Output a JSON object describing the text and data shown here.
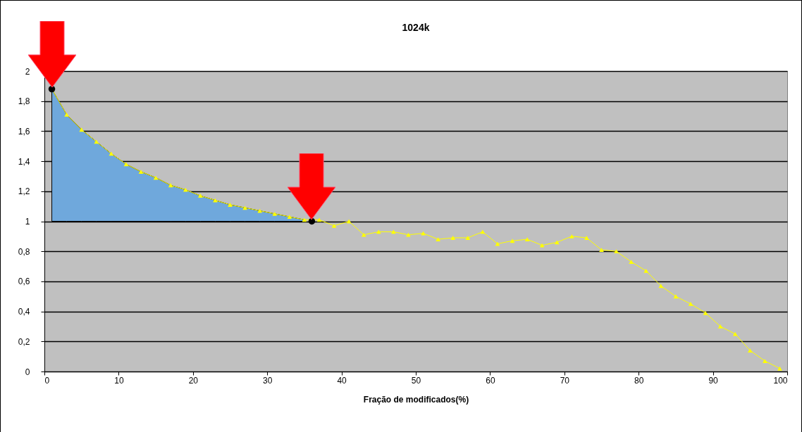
{
  "chart_data": {
    "type": "line",
    "title": "1024k",
    "xlabel": "Fração de modificados(%)",
    "xlim": [
      0,
      100
    ],
    "xticks": [
      0,
      10,
      20,
      30,
      40,
      50,
      60,
      70,
      80,
      90,
      100
    ],
    "ylim": [
      0,
      2
    ],
    "yticks": [
      0,
      {
        "value": 0.2,
        "label": "0,2"
      },
      {
        "value": 0.4,
        "label": "0,4"
      },
      {
        "value": 0.6,
        "label": "0,6"
      },
      {
        "value": 0.8,
        "label": "0,8"
      },
      1,
      {
        "value": 1.2,
        "label": "1,2"
      },
      {
        "value": 1.4,
        "label": "1,4"
      },
      {
        "value": 1.6,
        "label": "1,6"
      },
      {
        "value": 1.8,
        "label": "1,8"
      },
      2
    ],
    "grid": "y",
    "series": [
      {
        "color": "#ffff00",
        "marker": "triangle",
        "x": [
          1,
          3,
          5,
          7,
          9,
          11,
          13,
          15,
          17,
          19,
          21,
          23,
          25,
          27,
          29,
          31,
          33,
          35,
          37,
          39,
          41,
          43,
          45,
          47,
          49,
          51,
          53,
          55,
          57,
          59,
          61,
          63,
          65,
          67,
          69,
          71,
          73,
          75,
          77,
          79,
          81,
          83,
          85,
          87,
          89,
          91,
          93,
          95,
          97,
          99
        ],
        "values": [
          1.88,
          1.71,
          1.61,
          1.53,
          1.45,
          1.38,
          1.33,
          1.29,
          1.24,
          1.21,
          1.17,
          1.14,
          1.11,
          1.09,
          1.07,
          1.05,
          1.03,
          1.01,
          1.01,
          0.97,
          1.0,
          0.91,
          0.93,
          0.93,
          0.91,
          0.92,
          0.88,
          0.89,
          0.89,
          0.93,
          0.85,
          0.87,
          0.88,
          0.84,
          0.86,
          0.9,
          0.89,
          0.81,
          0.8,
          0.73,
          0.67,
          0.57,
          0.5,
          0.45,
          0.39,
          0.3,
          0.25,
          0.14,
          0.07,
          0.02
        ],
        "lower": [
          1,
          1,
          1,
          1,
          1,
          1,
          1,
          1,
          1,
          1,
          1,
          1,
          1,
          1,
          1,
          1,
          1,
          1,
          null,
          null,
          null,
          null,
          null,
          null,
          null,
          null,
          null,
          null,
          null,
          null,
          null,
          null,
          null,
          null,
          null,
          null,
          null,
          null,
          null,
          null,
          null,
          null,
          null,
          null,
          null,
          null,
          null,
          null,
          null,
          null
        ],
        "upper": [
          1.88,
          1.71,
          1.61,
          1.53,
          1.45,
          1.38,
          1.33,
          1.29,
          1.24,
          1.21,
          1.17,
          1.14,
          1.11,
          1.09,
          1.07,
          1.05,
          1.03,
          1.01,
          null,
          null,
          null,
          null,
          null,
          null,
          null,
          null,
          null,
          null,
          null,
          null,
          null,
          null,
          null,
          null,
          null,
          null,
          null,
          null,
          null,
          null,
          null,
          null,
          null,
          null,
          null,
          null,
          null,
          null,
          null,
          null
        ]
      },
      {
        "type": "scatter",
        "color": "#000000",
        "marker": "circle",
        "x": [
          1,
          36
        ],
        "values": [
          1.88,
          1.0
        ]
      }
    ]
  }
}
